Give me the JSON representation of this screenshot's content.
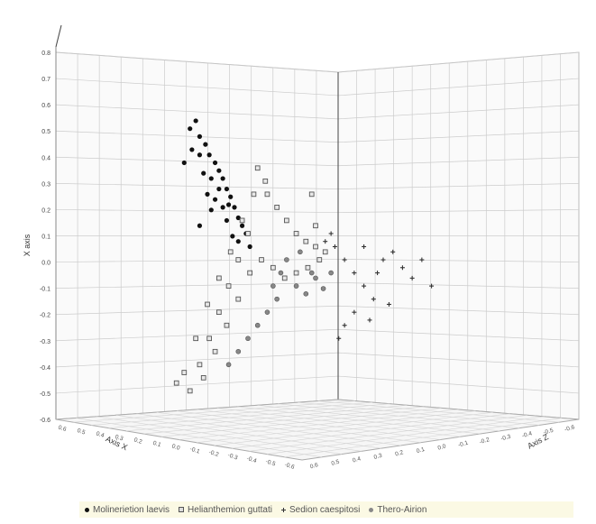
{
  "chart_data": {
    "type": "scatter",
    "projection": "3d",
    "axes": {
      "y": {
        "label": "X axis",
        "ticks": [
          "0.8",
          "0.7",
          "0.6",
          "0.5",
          "0.4",
          "0.3",
          "0.2",
          "0.1",
          "0.0",
          "-0.1",
          "-0.2",
          "-0.3",
          "-0.4",
          "-0.5",
          "-0.6"
        ],
        "range": [
          -0.6,
          0.8
        ]
      },
      "left_floor": {
        "label": "Axis X",
        "ticks": [
          "0.6",
          "0.5",
          "0.4",
          "0.3",
          "0.2",
          "0.1",
          "0.0",
          "-0.1",
          "-0.2",
          "-0.3",
          "-0.4",
          "-0.5",
          "-0.6"
        ]
      },
      "right_floor": {
        "label": "Axis Z",
        "ticks": [
          "0.6",
          "0.5",
          "0.4",
          "0.3",
          "0.2",
          "0.1",
          "0.0",
          "-0.1",
          "-0.2",
          "-0.3",
          "-0.4",
          "-0.5",
          "-0.6"
        ]
      }
    },
    "grid": true,
    "legend_position": "bottom",
    "series": [
      {
        "name": "Molinerietion laevis",
        "marker": "circle-filled",
        "color": "#111111",
        "points": [
          [
            -0.55,
            0.55
          ],
          [
            -0.52,
            0.58
          ],
          [
            -0.5,
            0.52
          ],
          [
            -0.47,
            0.49
          ],
          [
            -0.45,
            0.45
          ],
          [
            -0.5,
            0.45
          ],
          [
            -0.42,
            0.42
          ],
          [
            -0.4,
            0.39
          ],
          [
            -0.38,
            0.36
          ],
          [
            -0.44,
            0.36
          ],
          [
            -0.36,
            0.32
          ],
          [
            -0.34,
            0.29
          ],
          [
            -0.32,
            0.25
          ],
          [
            -0.38,
            0.25
          ],
          [
            -0.3,
            0.21
          ],
          [
            -0.28,
            0.18
          ],
          [
            -0.26,
            0.15
          ],
          [
            -0.3,
            0.12
          ],
          [
            -0.24,
            0.1
          ],
          [
            -0.5,
            0.18
          ],
          [
            -0.46,
            0.3
          ],
          [
            -0.42,
            0.28
          ],
          [
            -0.36,
            0.2
          ],
          [
            -0.33,
            0.14
          ],
          [
            -0.58,
            0.42
          ],
          [
            -0.54,
            0.47
          ],
          [
            -0.48,
            0.38
          ],
          [
            -0.44,
            0.24
          ],
          [
            -0.4,
            0.32
          ],
          [
            -0.35,
            0.26
          ]
        ]
      },
      {
        "name": "Helianthemion guttati",
        "marker": "square-open",
        "color": "#555555",
        "points": [
          [
            -0.2,
            0.4
          ],
          [
            -0.15,
            0.3
          ],
          [
            -0.1,
            0.25
          ],
          [
            -0.05,
            0.2
          ],
          [
            0.0,
            0.15
          ],
          [
            0.05,
            0.12
          ],
          [
            0.1,
            0.1
          ],
          [
            0.15,
            0.08
          ],
          [
            -0.25,
            0.15
          ],
          [
            -0.3,
            0.05
          ],
          [
            -0.35,
            -0.05
          ],
          [
            -0.4,
            -0.15
          ],
          [
            -0.45,
            -0.25
          ],
          [
            -0.5,
            -0.35
          ],
          [
            -0.55,
            -0.45
          ],
          [
            -0.48,
            -0.4
          ],
          [
            -0.42,
            -0.3
          ],
          [
            -0.36,
            -0.2
          ],
          [
            -0.3,
            -0.1
          ],
          [
            -0.24,
            0.0
          ],
          [
            -0.18,
            0.05
          ],
          [
            -0.12,
            0.02
          ],
          [
            -0.06,
            -0.02
          ],
          [
            0.0,
            0.0
          ],
          [
            0.06,
            0.02
          ],
          [
            0.12,
            0.05
          ],
          [
            -0.52,
            -0.25
          ],
          [
            -0.58,
            -0.38
          ],
          [
            -0.62,
            -0.42
          ],
          [
            -0.46,
            -0.12
          ],
          [
            -0.4,
            -0.02
          ],
          [
            -0.34,
            0.08
          ],
          [
            -0.28,
            0.2
          ],
          [
            -0.22,
            0.3
          ],
          [
            -0.16,
            0.35
          ],
          [
            0.08,
            0.3
          ],
          [
            0.1,
            0.18
          ]
        ]
      },
      {
        "name": "Sedion caespitosi",
        "marker": "cross",
        "color": "#333333",
        "points": [
          [
            0.2,
            0.1
          ],
          [
            0.25,
            0.05
          ],
          [
            0.3,
            0.0
          ],
          [
            0.35,
            -0.05
          ],
          [
            0.4,
            -0.1
          ],
          [
            0.45,
            0.05
          ],
          [
            0.5,
            0.08
          ],
          [
            0.55,
            0.02
          ],
          [
            0.6,
            -0.02
          ],
          [
            0.65,
            0.05
          ],
          [
            0.7,
            -0.05
          ],
          [
            0.3,
            -0.15
          ],
          [
            0.25,
            -0.2
          ],
          [
            0.22,
            -0.25
          ],
          [
            0.18,
            0.15
          ],
          [
            0.15,
            0.12
          ],
          [
            0.35,
            0.1
          ],
          [
            0.42,
            0.0
          ],
          [
            0.48,
            -0.12
          ],
          [
            0.38,
            -0.18
          ]
        ]
      },
      {
        "name": "Thero-Airion",
        "marker": "circle-grey",
        "color": "#888888",
        "points": [
          [
            -0.05,
            0.05
          ],
          [
            0.0,
            -0.05
          ],
          [
            0.05,
            -0.08
          ],
          [
            0.1,
            -0.02
          ],
          [
            -0.1,
            -0.1
          ],
          [
            -0.15,
            -0.15
          ],
          [
            -0.2,
            -0.2
          ],
          [
            -0.25,
            -0.25
          ],
          [
            -0.3,
            -0.3
          ],
          [
            -0.35,
            -0.35
          ],
          [
            0.02,
            0.08
          ],
          [
            0.08,
            0.0
          ],
          [
            -0.08,
            0.0
          ],
          [
            -0.12,
            -0.05
          ],
          [
            0.14,
            -0.06
          ],
          [
            0.18,
            0.0
          ]
        ]
      }
    ]
  },
  "legend": {
    "items": [
      {
        "label": "Molinerietion laevis"
      },
      {
        "label": "Helianthemion guttati"
      },
      {
        "label": "Sedion caespitosi"
      },
      {
        "label": "Thero-Airion"
      }
    ]
  }
}
